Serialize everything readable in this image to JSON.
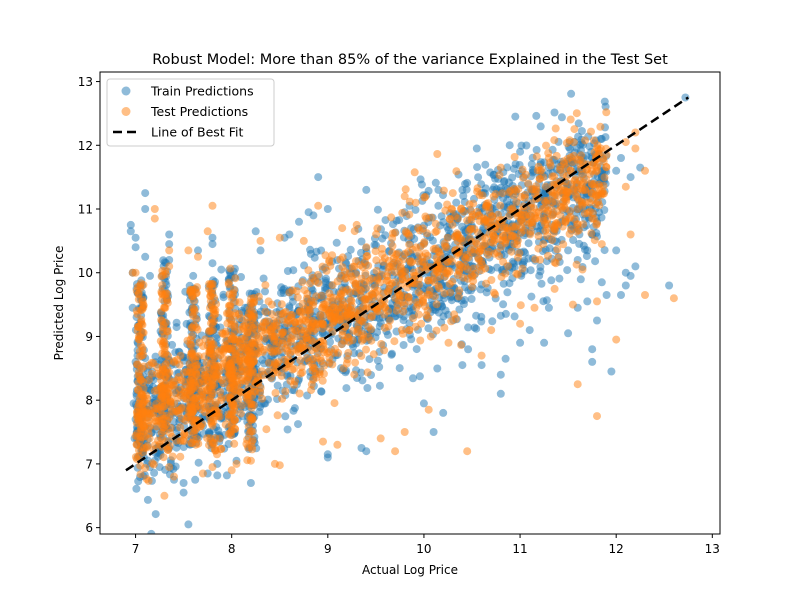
{
  "chart_data": {
    "type": "scatter",
    "title": "Robust Model: More than 85% of the variance Explained in the Test Set",
    "xlabel": "Actual Log Price",
    "ylabel": "Predicted Log Price",
    "xlim": [
      6.63,
      13.08
    ],
    "ylim": [
      5.9,
      13.15
    ],
    "xticks": [
      7,
      8,
      9,
      10,
      11,
      12,
      13
    ],
    "yticks": [
      6,
      7,
      8,
      9,
      10,
      11,
      12,
      13
    ],
    "grid": false,
    "legend": {
      "position": "top-left",
      "entries": [
        {
          "label": "Train Predictions",
          "kind": "marker",
          "color": "#1f77b4"
        },
        {
          "label": "Test Predictions",
          "kind": "marker",
          "color": "#ff7f0e"
        },
        {
          "label": "Line of Best Fit",
          "kind": "dashed-line",
          "color": "#000000"
        }
      ]
    },
    "series": [
      {
        "name": "Train Predictions",
        "color": "#1f77b4",
        "alpha": 0.5,
        "points": [
          [
            6.95,
            10.75
          ],
          [
            6.95,
            10.65
          ],
          [
            6.97,
            10.0
          ],
          [
            6.97,
            9.45
          ],
          [
            6.98,
            7.95
          ],
          [
            6.99,
            7.4
          ],
          [
            7.0,
            10.55
          ],
          [
            7.0,
            10.4
          ],
          [
            7.02,
            8.7
          ],
          [
            7.0,
            8.6
          ],
          [
            7.02,
            8.3
          ],
          [
            7.0,
            7.7
          ],
          [
            7.02,
            7.3
          ],
          [
            7.05,
            9.0
          ],
          [
            7.1,
            11.25
          ],
          [
            7.1,
            11.0
          ],
          [
            7.15,
            9.95
          ],
          [
            7.1,
            10.25
          ],
          [
            7.12,
            7.0
          ],
          [
            7.15,
            6.95
          ],
          [
            7.2,
            7.05
          ],
          [
            7.25,
            6.95
          ],
          [
            7.35,
            10.6
          ],
          [
            7.35,
            10.45
          ],
          [
            7.35,
            10.2
          ],
          [
            7.3,
            9.55
          ],
          [
            7.4,
            6.75
          ],
          [
            7.5,
            6.55
          ],
          [
            7.5,
            6.7
          ],
          [
            7.55,
            6.05
          ],
          [
            7.62,
            6.75
          ],
          [
            7.75,
            6.85
          ],
          [
            7.85,
            6.82
          ],
          [
            7.95,
            6.82
          ],
          [
            7.6,
            9.95
          ],
          [
            7.65,
            10.35
          ],
          [
            7.6,
            9.6
          ],
          [
            7.8,
            10.15
          ],
          [
            7.8,
            10.55
          ],
          [
            7.8,
            10.45
          ],
          [
            7.85,
            7.0
          ],
          [
            8.05,
            7.05
          ],
          [
            8.2,
            6.7
          ],
          [
            8.3,
            10.35
          ],
          [
            8.25,
            10.65
          ],
          [
            8.55,
            10.55
          ],
          [
            8.6,
            10.6
          ],
          [
            8.9,
            11.5
          ],
          [
            8.8,
            10.95
          ],
          [
            8.85,
            10.9
          ],
          [
            8.7,
            10.8
          ],
          [
            9.0,
            11.0
          ],
          [
            9.0,
            7.15
          ],
          [
            9.0,
            7.1
          ],
          [
            9.4,
            7.2
          ],
          [
            9.35,
            7.25
          ],
          [
            9.4,
            11.3
          ],
          [
            9.85,
            11.05
          ],
          [
            9.8,
            10.95
          ],
          [
            10.15,
            11.05
          ],
          [
            10.15,
            11.3
          ],
          [
            10.4,
            11.3
          ],
          [
            10.6,
            11.25
          ],
          [
            10.55,
            11.95
          ],
          [
            10.95,
            12.45
          ],
          [
            11.0,
            11.9
          ],
          [
            11.3,
            11.65
          ],
          [
            11.4,
            11.7
          ],
          [
            11.5,
            11.75
          ],
          [
            11.65,
            11.6
          ],
          [
            11.8,
            11.1
          ],
          [
            11.85,
            12.1
          ],
          [
            11.85,
            11.5
          ],
          [
            12.0,
            11.6
          ],
          [
            12.05,
            11.8
          ],
          [
            12.15,
            11.5
          ],
          [
            12.25,
            11.65
          ],
          [
            10.0,
            7.95
          ],
          [
            10.2,
            7.8
          ],
          [
            10.1,
            7.5
          ],
          [
            10.4,
            8.55
          ],
          [
            10.6,
            8.55
          ],
          [
            10.8,
            8.1
          ],
          [
            10.8,
            8.4
          ],
          [
            10.85,
            8.65
          ],
          [
            11.0,
            8.9
          ],
          [
            11.1,
            9.1
          ],
          [
            11.25,
            8.9
          ],
          [
            11.3,
            9.45
          ],
          [
            11.5,
            9.05
          ],
          [
            11.6,
            9.45
          ],
          [
            11.7,
            9.55
          ],
          [
            11.75,
            8.8
          ],
          [
            11.75,
            8.6
          ],
          [
            11.8,
            9.25
          ],
          [
            11.9,
            9.65
          ],
          [
            11.95,
            8.45
          ],
          [
            11.85,
            9.85
          ],
          [
            12.05,
            9.65
          ],
          [
            12.1,
            9.8
          ],
          [
            12.15,
            9.95
          ],
          [
            12.1,
            10.0
          ],
          [
            12.0,
            10.35
          ],
          [
            12.2,
            10.1
          ],
          [
            12.55,
            9.8
          ],
          [
            11.6,
            10.2
          ],
          [
            11.7,
            10.35
          ],
          [
            11.8,
            10.8
          ],
          [
            11.75,
            10.6
          ],
          [
            11.5,
            10.35
          ],
          [
            12.72,
            12.75
          ]
        ]
      },
      {
        "name": "Test Predictions",
        "color": "#ff7f0e",
        "alpha": 0.5,
        "points": [
          [
            6.97,
            10.0
          ],
          [
            7.0,
            10.0
          ],
          [
            7.02,
            9.35
          ],
          [
            7.08,
            9.45
          ],
          [
            7.2,
            10.85
          ],
          [
            7.2,
            11.0
          ],
          [
            7.3,
            9.45
          ],
          [
            7.3,
            7.9
          ],
          [
            7.35,
            10.35
          ],
          [
            7.35,
            10.1
          ],
          [
            7.3,
            9.0
          ],
          [
            7.3,
            6.5
          ],
          [
            7.35,
            6.95
          ],
          [
            7.4,
            6.8
          ],
          [
            7.55,
            10.35
          ],
          [
            7.65,
            10.25
          ],
          [
            7.75,
            10.65
          ],
          [
            7.8,
            11.05
          ],
          [
            7.7,
            6.85
          ],
          [
            7.8,
            6.95
          ],
          [
            8.0,
            6.9
          ],
          [
            8.05,
            7.0
          ],
          [
            8.2,
            7.05
          ],
          [
            8.3,
            10.5
          ],
          [
            8.45,
            7.0
          ],
          [
            8.5,
            6.98
          ],
          [
            8.5,
            10.55
          ],
          [
            8.9,
            11.05
          ],
          [
            8.75,
            10.5
          ],
          [
            8.95,
            7.35
          ],
          [
            9.1,
            7.3
          ],
          [
            9.15,
            10.7
          ],
          [
            9.3,
            10.75
          ],
          [
            9.55,
            7.4
          ],
          [
            9.8,
            11.2
          ],
          [
            9.8,
            7.5
          ],
          [
            9.7,
            7.2
          ],
          [
            10.05,
            7.85
          ],
          [
            10.3,
            11.25
          ],
          [
            10.45,
            7.2
          ],
          [
            10.8,
            11.65
          ],
          [
            11.3,
            11.8
          ],
          [
            11.45,
            11.55
          ],
          [
            11.6,
            11.0
          ],
          [
            11.7,
            11.7
          ],
          [
            11.8,
            11.6
          ],
          [
            11.9,
            11.85
          ],
          [
            11.55,
            9.5
          ],
          [
            11.6,
            8.25
          ],
          [
            11.8,
            9.55
          ],
          [
            11.8,
            7.75
          ],
          [
            12.0,
            8.95
          ],
          [
            12.15,
            10.6
          ],
          [
            12.3,
            11.6
          ],
          [
            12.3,
            9.65
          ],
          [
            12.6,
            9.6
          ],
          [
            12.1,
            11.35
          ],
          [
            12.1,
            12.05
          ],
          [
            12.2,
            11.95
          ],
          [
            12.2,
            12.2
          ],
          [
            11.65,
            10.05
          ],
          [
            11.85,
            10.45
          ],
          [
            10.6,
            8.7
          ],
          [
            10.7,
            9.1
          ],
          [
            11.0,
            9.2
          ],
          [
            11.15,
            9.45
          ]
        ]
      }
    ],
    "dense_clouds": [
      {
        "series": "Train Predictions",
        "x_range": [
          7.0,
          11.9
        ],
        "y_at_x0": 7.6,
        "slope": 0.8,
        "spread": 0.55,
        "count": 1700
      },
      {
        "series": "Test Predictions",
        "x_range": [
          7.0,
          11.9
        ],
        "y_at_x0": 7.65,
        "slope": 0.8,
        "spread": 0.45,
        "count": 1500
      }
    ],
    "vertical_streaks": [
      {
        "x": 7.05,
        "y_range": [
          7.1,
          9.9
        ]
      },
      {
        "x": 7.3,
        "y_range": [
          7.2,
          10.2
        ]
      },
      {
        "x": 7.6,
        "y_range": [
          7.3,
          9.8
        ]
      },
      {
        "x": 7.8,
        "y_range": [
          7.2,
          9.9
        ]
      },
      {
        "x": 8.0,
        "y_range": [
          7.3,
          10.1
        ]
      },
      {
        "x": 8.2,
        "y_range": [
          7.2,
          9.7
        ]
      }
    ],
    "line_of_best_fit": {
      "x": [
        6.9,
        12.75
      ],
      "y": [
        6.9,
        12.75
      ],
      "style": "dashed",
      "color": "#000000"
    }
  }
}
